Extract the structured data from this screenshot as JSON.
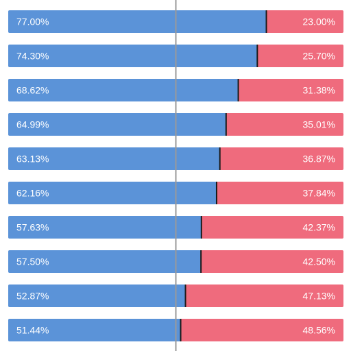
{
  "chart_data": {
    "type": "bar",
    "orientation": "horizontal",
    "stacked": "100%",
    "center_line": 50,
    "xlim": [
      0,
      100
    ],
    "series": [
      {
        "color": "#5b93d8",
        "values": [
          77.0,
          74.3,
          68.62,
          64.99,
          63.13,
          62.16,
          57.63,
          57.5,
          52.87,
          51.44
        ],
        "labels": [
          "77.00%",
          "74.30%",
          "68.62%",
          "64.99%",
          "63.13%",
          "62.16%",
          "57.63%",
          "57.50%",
          "52.87%",
          "51.44%"
        ]
      },
      {
        "color": "#ef6b7d",
        "values": [
          23.0,
          25.7,
          31.38,
          35.01,
          36.87,
          37.84,
          42.37,
          42.5,
          47.13,
          48.56
        ],
        "labels": [
          "23.00%",
          "25.70%",
          "31.38%",
          "35.01%",
          "36.87%",
          "37.84%",
          "42.37%",
          "42.50%",
          "47.13%",
          "48.56%"
        ]
      }
    ]
  }
}
